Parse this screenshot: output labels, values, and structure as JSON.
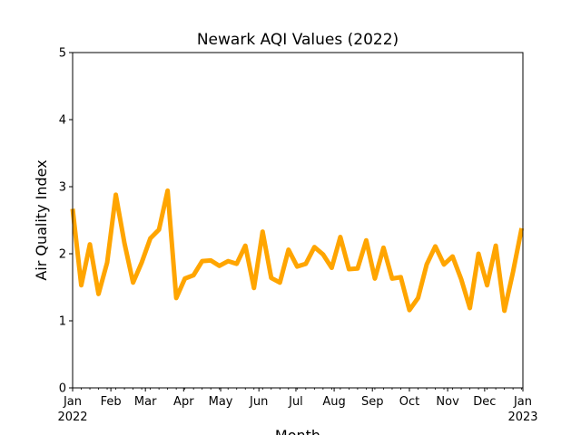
{
  "chart_data": {
    "type": "line",
    "title": "Newark AQI Values (2022)",
    "xlabel": "Month",
    "ylabel": "Air Quality Index",
    "ylim": [
      0,
      5
    ],
    "yticks": [
      0,
      1,
      2,
      3,
      4,
      5
    ],
    "xlim": [
      "2022-01-01",
      "2023-01-01"
    ],
    "xticks": [
      {
        "date": "2022-01-01",
        "label": "Jan",
        "sublabel": "2022"
      },
      {
        "date": "2022-02-01",
        "label": "Feb",
        "sublabel": ""
      },
      {
        "date": "2022-03-01",
        "label": "Mar",
        "sublabel": ""
      },
      {
        "date": "2022-04-01",
        "label": "Apr",
        "sublabel": ""
      },
      {
        "date": "2022-05-01",
        "label": "May",
        "sublabel": ""
      },
      {
        "date": "2022-06-01",
        "label": "Jun",
        "sublabel": ""
      },
      {
        "date": "2022-07-01",
        "label": "Jul",
        "sublabel": ""
      },
      {
        "date": "2022-08-01",
        "label": "Aug",
        "sublabel": ""
      },
      {
        "date": "2022-09-01",
        "label": "Sep",
        "sublabel": ""
      },
      {
        "date": "2022-10-01",
        "label": "Oct",
        "sublabel": ""
      },
      {
        "date": "2022-11-01",
        "label": "Nov",
        "sublabel": ""
      },
      {
        "date": "2022-12-01",
        "label": "Dec",
        "sublabel": ""
      },
      {
        "date": "2023-01-01",
        "label": "Jan",
        "sublabel": "2023"
      }
    ],
    "grid": false,
    "line_color": "#FFA500",
    "series": [
      {
        "x": [
          "2022-01-01",
          "2022-01-08",
          "2022-01-15",
          "2022-01-22",
          "2022-01-29",
          "2022-02-05",
          "2022-02-12",
          "2022-02-19",
          "2022-02-26",
          "2022-03-05",
          "2022-03-12",
          "2022-03-19",
          "2022-03-26",
          "2022-04-02",
          "2022-04-09",
          "2022-04-16",
          "2022-04-23",
          "2022-04-30",
          "2022-05-07",
          "2022-05-14",
          "2022-05-21",
          "2022-05-28",
          "2022-06-04",
          "2022-06-11",
          "2022-06-18",
          "2022-06-25",
          "2022-07-02",
          "2022-07-09",
          "2022-07-16",
          "2022-07-23",
          "2022-07-30",
          "2022-08-06",
          "2022-08-13",
          "2022-08-20",
          "2022-08-27",
          "2022-09-03",
          "2022-09-10",
          "2022-09-17",
          "2022-09-24",
          "2022-10-01",
          "2022-10-08",
          "2022-10-15",
          "2022-10-22",
          "2022-10-29",
          "2022-11-05",
          "2022-11-12",
          "2022-11-19",
          "2022-11-26",
          "2022-12-03",
          "2022-12-10",
          "2022-12-17",
          "2022-12-24",
          "2022-12-31"
        ],
        "values": [
          2.67,
          1.53,
          2.14,
          1.4,
          1.87,
          2.88,
          2.16,
          1.57,
          1.87,
          2.23,
          2.36,
          2.94,
          1.34,
          1.63,
          1.68,
          1.89,
          1.9,
          1.82,
          1.89,
          1.85,
          2.12,
          1.49,
          2.33,
          1.64,
          1.57,
          2.06,
          1.81,
          1.85,
          2.1,
          1.99,
          1.79,
          2.25,
          1.77,
          1.78,
          2.2,
          1.63,
          2.09,
          1.63,
          1.65,
          1.16,
          1.34,
          1.84,
          2.11,
          1.84,
          1.96,
          1.62,
          1.19,
          2.0,
          1.53,
          2.12,
          1.15,
          1.73,
          2.38
        ]
      }
    ]
  }
}
